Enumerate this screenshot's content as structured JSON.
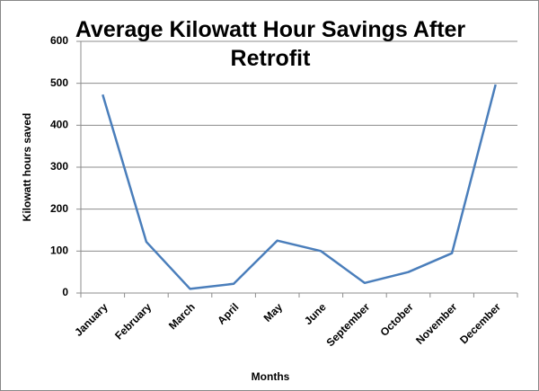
{
  "chart_data": {
    "type": "line",
    "title": "Average Kilowatt Hour Savings After Retrofit",
    "x_label": "Months",
    "y_label": "Kilowatt hours saved",
    "categories": [
      "January",
      "February",
      "March",
      "April",
      "May",
      "June",
      "September",
      "October",
      "November",
      "December"
    ],
    "values": [
      473,
      122,
      10,
      22,
      125,
      100,
      24,
      50,
      95,
      497
    ],
    "color": "#4a7ebb",
    "ylim": [
      0,
      600
    ],
    "yticks": [
      0,
      100,
      200,
      300,
      400,
      500,
      600
    ],
    "grid": true
  }
}
